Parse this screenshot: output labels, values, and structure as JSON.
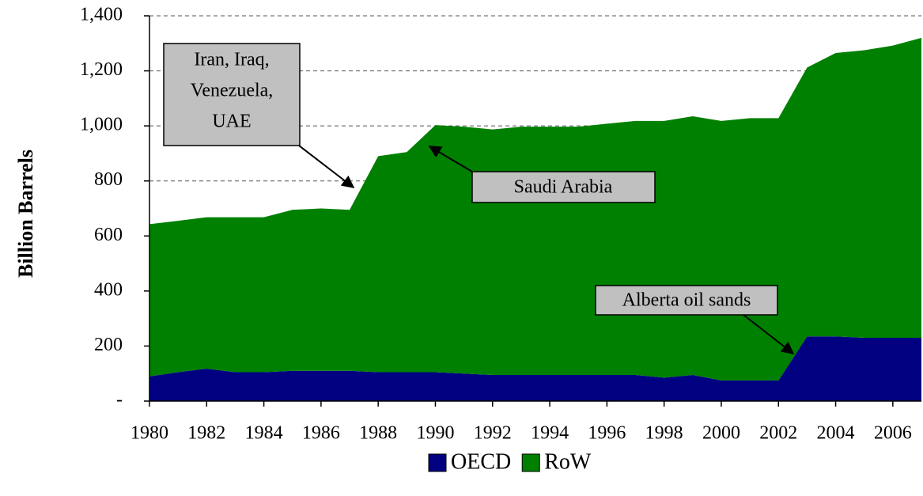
{
  "chart_data": {
    "type": "area",
    "y_label": "Billion Barrels",
    "x": [
      1980,
      1981,
      1982,
      1983,
      1984,
      1985,
      1986,
      1987,
      1988,
      1989,
      1990,
      1991,
      1992,
      1993,
      1994,
      1995,
      1996,
      1997,
      1998,
      1999,
      2000,
      2001,
      2002,
      2003,
      2004,
      2005,
      2006,
      2007
    ],
    "series": [
      {
        "name": "OECD",
        "color": "#000080",
        "values": [
          90,
          105,
          118,
          105,
          105,
          110,
          110,
          110,
          105,
          105,
          105,
          100,
          95,
          95,
          95,
          95,
          95,
          95,
          85,
          95,
          75,
          75,
          75,
          235,
          235,
          230,
          230,
          230
        ]
      },
      {
        "name": "RoW",
        "color": "#008000",
        "values": [
          553,
          550,
          550,
          563,
          563,
          585,
          590,
          585,
          785,
          800,
          898,
          897,
          892,
          902,
          902,
          902,
          913,
          923,
          933,
          940,
          943,
          953,
          953,
          977,
          1030,
          1045,
          1062,
          1090
        ]
      }
    ],
    "stacked": true,
    "xlim": [
      1980,
      2007
    ],
    "xticks": [
      1980,
      1982,
      1984,
      1986,
      1988,
      1990,
      1992,
      1994,
      1996,
      1998,
      2000,
      2002,
      2004,
      2006
    ],
    "ylim": [
      0,
      1400
    ],
    "yticks": [
      {
        "value": 0,
        "label": "-"
      },
      200,
      400,
      600,
      800,
      {
        "value": 1000,
        "label": "1,000"
      },
      {
        "value": 1200,
        "label": "1,200"
      },
      {
        "value": 1400,
        "label": "1,400"
      }
    ],
    "grid": true,
    "legend": "bottom",
    "annotations": [
      {
        "text": [
          "Iran, Iraq,",
          "Venezuela,",
          "UAE"
        ]
      },
      {
        "text": [
          "Saudi Arabia"
        ]
      },
      {
        "text": [
          "Alberta oil sands"
        ]
      }
    ]
  }
}
